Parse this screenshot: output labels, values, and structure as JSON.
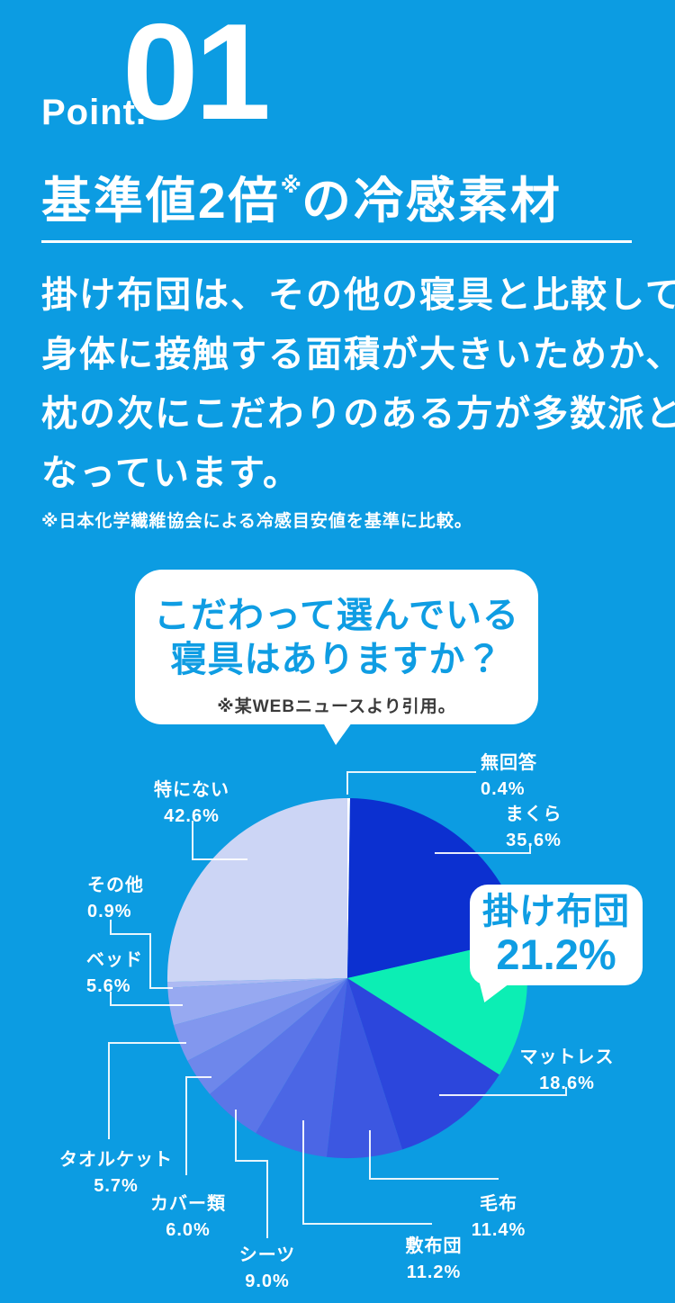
{
  "page": {
    "background_color": "#0c9ce2"
  },
  "header": {
    "point_label": "Point.",
    "point_number": "01",
    "title_main": "基準値2倍",
    "title_note_mark": "※",
    "title_tail": "の冷感素材"
  },
  "intro": {
    "lines": [
      "掛け布団は、その他の寝具と比較して",
      "身体に接触する面積が大きいためか、",
      "枕の次にこだわりのある方が多数派と",
      "なっています。"
    ],
    "footnote": "※日本化学繊維協会による冷感目安値を基準に比較。"
  },
  "question_bubble": {
    "line1": "こだわって選んでいる",
    "line2": "寝具はありますか？",
    "note": "※某WEBニュースより引用。"
  },
  "chart_data": {
    "type": "pie",
    "title": "こだわって選んでいる寝具はありますか？",
    "source_note": "※某WEBニュースより引用。",
    "start_angle": "top",
    "direction": "clockwise",
    "highlighted_segment": "掛け布団",
    "segments": [
      {
        "label": "無回答",
        "value": 0.4,
        "display": "0.4%",
        "color": "#ffffff"
      },
      {
        "label": "まくら",
        "value": 35.6,
        "display": "35.6%",
        "color": "#0c30d0"
      },
      {
        "label": "掛け布団",
        "value": 21.2,
        "display": "21.2%",
        "color": "#0ceeb4"
      },
      {
        "label": "マットレス",
        "value": 18.6,
        "display": "18.6%",
        "color": "#2c46dc"
      },
      {
        "label": "毛布",
        "value": 11.4,
        "display": "11.4%",
        "color": "#3c57e1"
      },
      {
        "label": "敷布団",
        "value": 11.2,
        "display": "11.2%",
        "color": "#4b66e5"
      },
      {
        "label": "シーツ",
        "value": 9.0,
        "display": "9.0%",
        "color": "#5b75e8"
      },
      {
        "label": "カバー類",
        "value": 6.0,
        "display": "6.0%",
        "color": "#6e87eb"
      },
      {
        "label": "タオルケット",
        "value": 5.7,
        "display": "5.7%",
        "color": "#8297ee"
      },
      {
        "label": "ベッド",
        "value": 5.6,
        "display": "5.6%",
        "color": "#97a9f1"
      },
      {
        "label": "その他",
        "value": 0.9,
        "display": "0.9%",
        "color": "#adbaf3"
      },
      {
        "label": "特にない",
        "value": 42.6,
        "display": "42.6%",
        "color": "#ccd5f5"
      }
    ]
  }
}
